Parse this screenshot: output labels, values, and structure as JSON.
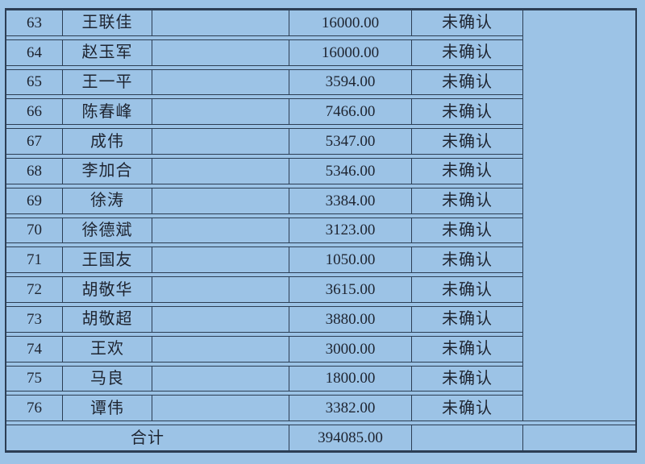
{
  "colors": {
    "background": "#9cc3e6",
    "grid_line": "#2c3e54",
    "text": "#1e2430"
  },
  "table": {
    "columns": [
      "row_number",
      "name",
      "blank",
      "amount",
      "status",
      "note"
    ],
    "status_value": "未确认",
    "rows": [
      {
        "no": "63",
        "name": "王联佳",
        "blank": "",
        "amount": "16000.00",
        "status": "未确认"
      },
      {
        "no": "64",
        "name": "赵玉军",
        "blank": "",
        "amount": "16000.00",
        "status": "未确认"
      },
      {
        "no": "65",
        "name": "王一平",
        "blank": "",
        "amount": "3594.00",
        "status": "未确认"
      },
      {
        "no": "66",
        "name": "陈春峰",
        "blank": "",
        "amount": "7466.00",
        "status": "未确认"
      },
      {
        "no": "67",
        "name": "成伟",
        "blank": "",
        "amount": "5347.00",
        "status": "未确认"
      },
      {
        "no": "68",
        "name": "李加合",
        "blank": "",
        "amount": "5346.00",
        "status": "未确认"
      },
      {
        "no": "69",
        "name": "徐涛",
        "blank": "",
        "amount": "3384.00",
        "status": "未确认"
      },
      {
        "no": "70",
        "name": "徐德斌",
        "blank": "",
        "amount": "3123.00",
        "status": "未确认"
      },
      {
        "no": "71",
        "name": "王国友",
        "blank": "",
        "amount": "1050.00",
        "status": "未确认"
      },
      {
        "no": "72",
        "name": "胡敬华",
        "blank": "",
        "amount": "3615.00",
        "status": "未确认"
      },
      {
        "no": "73",
        "name": "胡敬超",
        "blank": "",
        "amount": "3880.00",
        "status": "未确认"
      },
      {
        "no": "74",
        "name": "王欢",
        "blank": "",
        "amount": "3000.00",
        "status": "未确认"
      },
      {
        "no": "75",
        "name": "马良",
        "blank": "",
        "amount": "1800.00",
        "status": "未确认"
      },
      {
        "no": "76",
        "name": "谭伟",
        "blank": "",
        "amount": "3382.00",
        "status": "未确认"
      }
    ],
    "total_row": {
      "label": "合计",
      "amount": "394085.00",
      "status": "",
      "note": ""
    },
    "note_column_value": ""
  }
}
